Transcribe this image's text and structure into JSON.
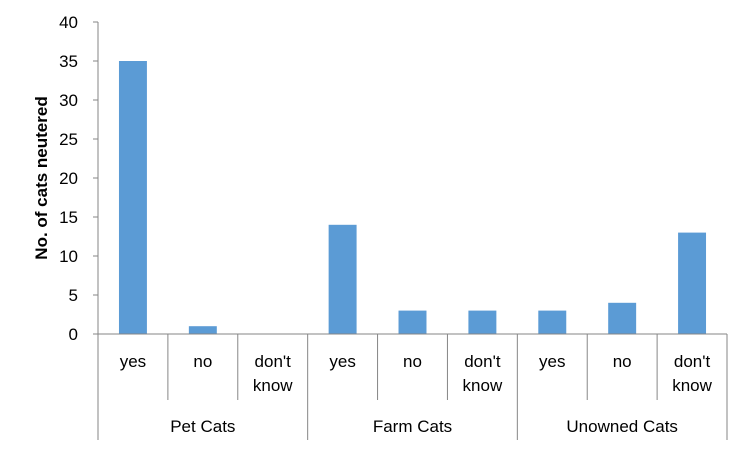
{
  "chart_data": {
    "type": "bar",
    "ylabel": "No. of cats neutered",
    "xlabel": "",
    "title": "",
    "ylim": [
      0,
      40
    ],
    "yticks": [
      0,
      5,
      10,
      15,
      20,
      25,
      30,
      35,
      40
    ],
    "grid": false,
    "legend": "none",
    "bar_color": "#5B9BD5",
    "groups": [
      {
        "name": "Pet Cats",
        "categories": [
          {
            "label": [
              "yes"
            ],
            "value": 35
          },
          {
            "label": [
              "no"
            ],
            "value": 1
          },
          {
            "label": [
              "don't",
              "know"
            ],
            "value": 0
          }
        ]
      },
      {
        "name": "Farm Cats",
        "categories": [
          {
            "label": [
              "yes"
            ],
            "value": 14
          },
          {
            "label": [
              "no"
            ],
            "value": 3
          },
          {
            "label": [
              "don't",
              "know"
            ],
            "value": 3
          }
        ]
      },
      {
        "name": "Unowned Cats",
        "categories": [
          {
            "label": [
              "yes"
            ],
            "value": 3
          },
          {
            "label": [
              "no"
            ],
            "value": 4
          },
          {
            "label": [
              "don't",
              "know"
            ],
            "value": 13
          }
        ]
      }
    ]
  }
}
